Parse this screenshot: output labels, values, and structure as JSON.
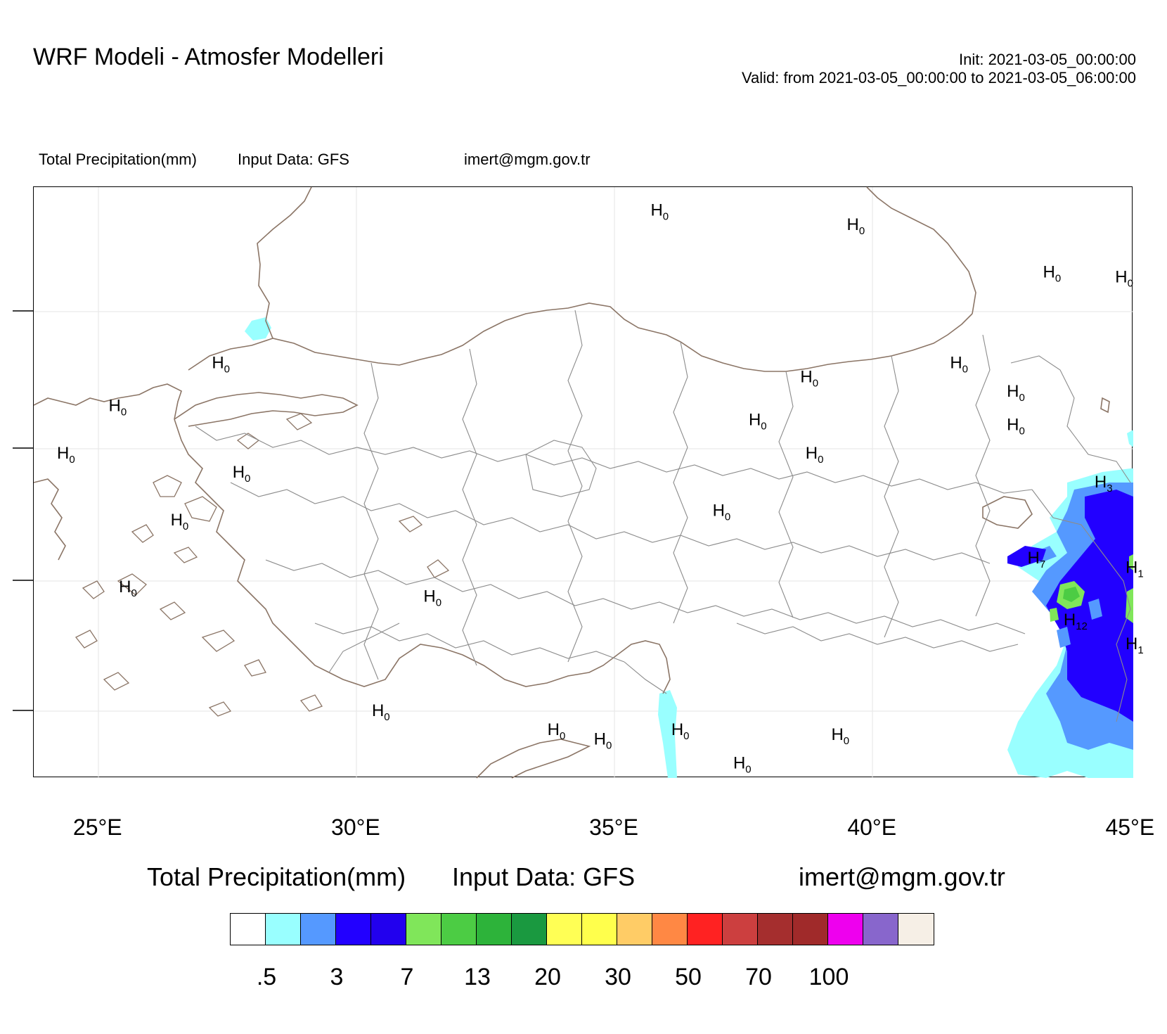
{
  "header": {
    "title": "WRF Modeli - Atmosfer Modelleri",
    "init": "Init: 2021-03-05_00:00:00",
    "valid": "Valid: from 2021-03-05_00:00:00 to 2021-03-05_06:00:00"
  },
  "subheader": {
    "variable": "Total Precipitation(mm)",
    "input": "Input Data: GFS",
    "email": "imert@mgm.gov.tr"
  },
  "map": {
    "lon_ticks": [
      "25°E",
      "30°E",
      "35°E",
      "40°E",
      "45°E"
    ],
    "h_marks": [
      {
        "lon": 35.7,
        "lat": 43.55,
        "v": "0"
      },
      {
        "lon": 39.5,
        "lat": 43.4,
        "v": "0"
      },
      {
        "lon": 43.3,
        "lat": 42.9,
        "v": "0"
      },
      {
        "lon": 44.7,
        "lat": 42.85,
        "v": "0"
      },
      {
        "lon": 27.2,
        "lat": 41.95,
        "v": "0"
      },
      {
        "lon": 41.5,
        "lat": 41.95,
        "v": "0"
      },
      {
        "lon": 38.6,
        "lat": 41.8,
        "v": "0"
      },
      {
        "lon": 42.6,
        "lat": 41.65,
        "v": "0"
      },
      {
        "lon": 25.2,
        "lat": 41.5,
        "v": "0"
      },
      {
        "lon": 37.6,
        "lat": 41.35,
        "v": "0"
      },
      {
        "lon": 42.6,
        "lat": 41.3,
        "v": "0"
      },
      {
        "lon": 24.2,
        "lat": 41.0,
        "v": "0"
      },
      {
        "lon": 38.7,
        "lat": 41.0,
        "v": "0"
      },
      {
        "lon": 27.6,
        "lat": 40.8,
        "v": "0"
      },
      {
        "lon": 44.3,
        "lat": 40.7,
        "v": "3"
      },
      {
        "lon": 36.9,
        "lat": 40.4,
        "v": "0"
      },
      {
        "lon": 26.4,
        "lat": 40.3,
        "v": "0"
      },
      {
        "lon": 43.0,
        "lat": 39.9,
        "v": "7"
      },
      {
        "lon": 44.9,
        "lat": 39.8,
        "v": "1"
      },
      {
        "lon": 25.4,
        "lat": 39.6,
        "v": "0"
      },
      {
        "lon": 31.3,
        "lat": 39.5,
        "v": "0"
      },
      {
        "lon": 43.7,
        "lat": 39.25,
        "v": "12"
      },
      {
        "lon": 44.9,
        "lat": 39.0,
        "v": "1"
      },
      {
        "lon": 30.3,
        "lat": 38.3,
        "v": "0"
      },
      {
        "lon": 33.7,
        "lat": 38.1,
        "v": "0"
      },
      {
        "lon": 34.6,
        "lat": 38.0,
        "v": "0"
      },
      {
        "lon": 36.1,
        "lat": 38.1,
        "v": "0"
      },
      {
        "lon": 39.2,
        "lat": 38.05,
        "v": "0"
      },
      {
        "lon": 37.3,
        "lat": 37.75,
        "v": "0"
      }
    ]
  },
  "colorbar": {
    "title_variable": "Total Precipitation(mm)",
    "title_input": "Input Data: GFS",
    "title_email": "imert@mgm.gov.tr",
    "colors": [
      "#ffffff",
      "#99ffff",
      "#5599ff",
      "#2200ff",
      "#2200ee",
      "#80e65a",
      "#4ccc44",
      "#2db33a",
      "#1a9940",
      "#ffff55",
      "#ffff4c",
      "#ffcc66",
      "#ff8844",
      "#ff2222",
      "#cc3f3f",
      "#a52e2e",
      "#a02a2a",
      "#ee00ee",
      "#8866cc",
      "#f6efe6"
    ],
    "ticks": [
      ".5",
      "3",
      "7",
      "13",
      "20",
      "30",
      "50",
      "70",
      "100"
    ]
  }
}
